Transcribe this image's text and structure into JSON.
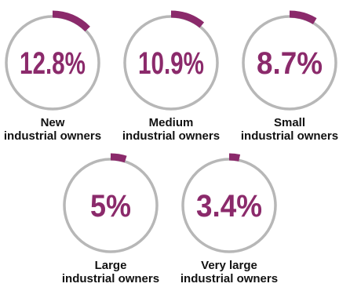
{
  "colors": {
    "accent": "#8b2a6b",
    "ring": "#b7b7b7",
    "label": "#111111"
  },
  "chart_data": {
    "type": "gauge",
    "items": [
      {
        "value": 12.8,
        "value_text": "12.8%",
        "label_lines": [
          "New",
          "industrial owners"
        ]
      },
      {
        "value": 10.9,
        "value_text": "10.9%",
        "label_lines": [
          "Medium",
          "industrial owners"
        ]
      },
      {
        "value": 8.7,
        "value_text": "8.7%",
        "label_lines": [
          "Small",
          "industrial owners"
        ]
      },
      {
        "value": 5,
        "value_text": "5%",
        "label_lines": [
          "Large",
          "industrial owners"
        ]
      },
      {
        "value": 3.4,
        "value_text": "3.4%",
        "label_lines": [
          "Very large",
          "industrial owners"
        ]
      }
    ]
  }
}
